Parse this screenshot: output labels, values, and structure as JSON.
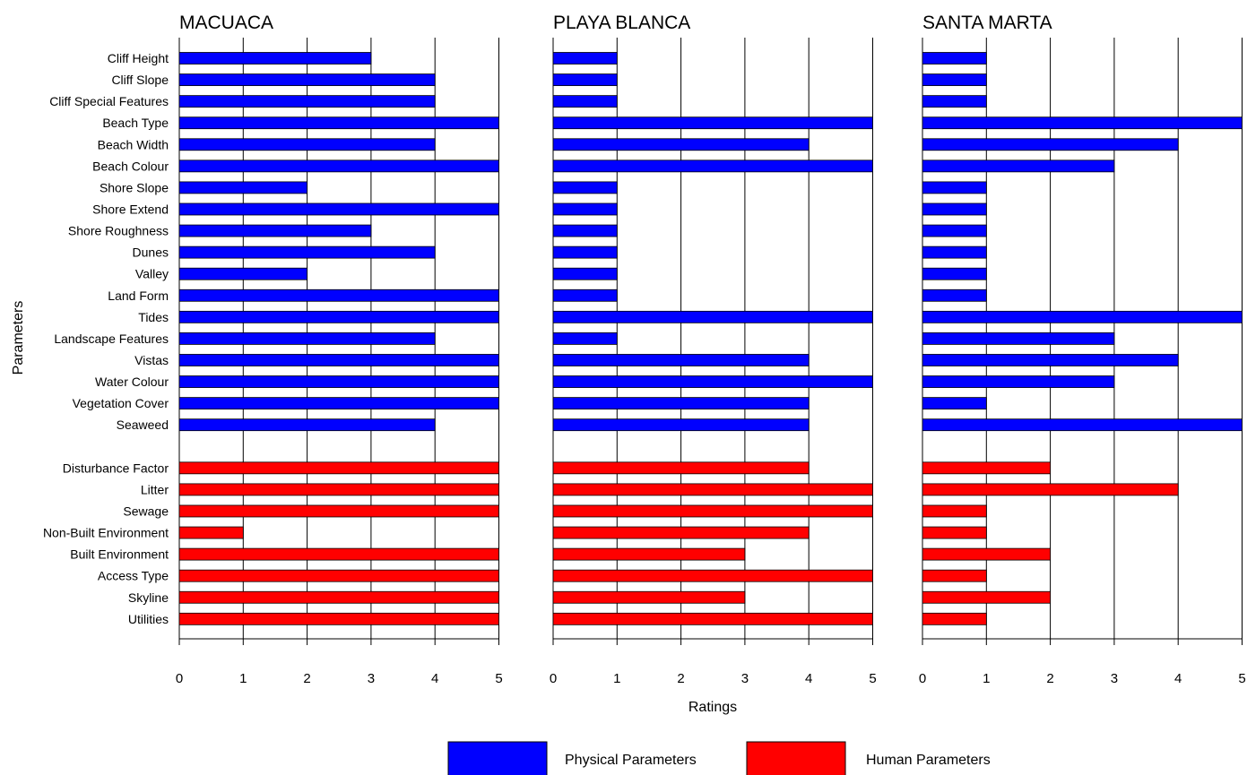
{
  "chart_data": {
    "type": "bar",
    "orientation": "horizontal",
    "ylabel": "Parameters",
    "xlabel": "Ratings",
    "xlim": [
      0,
      5
    ],
    "xticks": [
      0,
      1,
      2,
      3,
      4,
      5
    ],
    "grid": "vertical",
    "legend": {
      "placement": "bottom-center",
      "entries": [
        {
          "name": "Physical Parameters",
          "color": "#0000ff"
        },
        {
          "name": "Human Parameters",
          "color": "#ff0000"
        }
      ]
    },
    "categories": [
      "Cliff Height",
      "Cliff Slope",
      "Cliff Special Features",
      "Beach Type",
      "Beach Width",
      "Beach Colour",
      "Shore Slope",
      "Shore Extend",
      "Shore Roughness",
      "Dunes",
      "Valley",
      "Land Form",
      "Tides",
      "Landscape Features",
      "Vistas",
      "Water Colour",
      "Vegetation Cover",
      "Seaweed",
      "Disturbance Factor",
      "Litter",
      "Sewage",
      "Non-Built Environment",
      "Built Environment",
      "Access Type",
      "Skyline",
      "Utilities"
    ],
    "groups": [
      {
        "name": "Physical Parameters",
        "count": 18,
        "color": "#0000ff"
      },
      {
        "name": "Human Parameters",
        "count": 8,
        "color": "#ff0000"
      }
    ],
    "panels": [
      {
        "title": "MACUACA",
        "values": [
          3,
          4,
          4,
          5,
          4,
          5,
          2,
          5,
          3,
          4,
          2,
          5,
          5,
          4,
          5,
          5,
          5,
          4,
          5,
          5,
          5,
          1,
          5,
          5,
          5,
          5
        ]
      },
      {
        "title": "PLAYA BLANCA",
        "values": [
          1,
          1,
          1,
          5,
          4,
          5,
          1,
          1,
          1,
          1,
          1,
          1,
          5,
          1,
          4,
          5,
          4,
          4,
          4,
          5,
          5,
          4,
          3,
          5,
          3,
          5
        ]
      },
      {
        "title": "SANTA MARTA",
        "values": [
          1,
          1,
          1,
          5,
          4,
          3,
          1,
          1,
          1,
          1,
          1,
          1,
          5,
          3,
          4,
          3,
          1,
          5,
          2,
          4,
          1,
          1,
          2,
          1,
          2,
          1
        ]
      }
    ]
  }
}
